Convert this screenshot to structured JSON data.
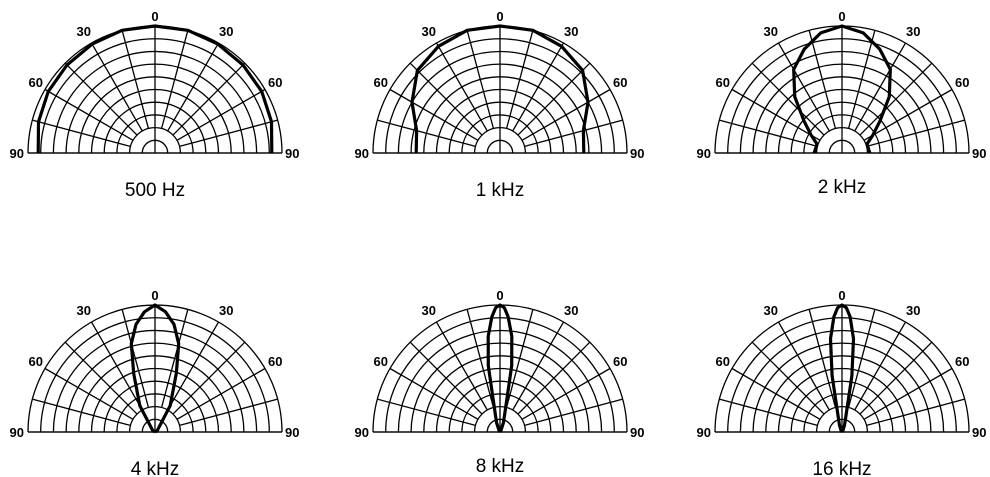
{
  "chart_data": [
    {
      "type": "polar",
      "title": "500 Hz",
      "angle_labels": [
        "0",
        "30",
        "30",
        "60",
        "60",
        "90",
        "90"
      ],
      "angles_deg": [
        -90,
        -75,
        -60,
        -45,
        -30,
        -15,
        0,
        15,
        30,
        45,
        60,
        75,
        90
      ],
      "values": [
        0.92,
        0.95,
        0.97,
        0.98,
        0.99,
        1.0,
        1.0,
        1.0,
        0.99,
        0.98,
        0.97,
        0.95,
        0.92
      ]
    },
    {
      "type": "polar",
      "title": "1 kHz",
      "angle_labels": [
        "0",
        "30",
        "30",
        "60",
        "60",
        "90",
        "90"
      ],
      "angles_deg": [
        -90,
        -75,
        -60,
        -45,
        -30,
        -15,
        0,
        15,
        30,
        45,
        60,
        75,
        90
      ],
      "values": [
        0.66,
        0.68,
        0.8,
        0.92,
        0.97,
        1.0,
        1.0,
        1.0,
        0.97,
        0.92,
        0.8,
        0.68,
        0.66
      ]
    },
    {
      "type": "polar",
      "title": "2 kHz",
      "angle_labels": [
        "0",
        "30",
        "30",
        "60",
        "60",
        "90",
        "90"
      ],
      "angles_deg": [
        -90,
        -80,
        -70,
        -60,
        -50,
        -40,
        -30,
        -20,
        -10,
        0,
        10,
        20,
        30,
        40,
        50,
        60,
        70,
        80,
        90
      ],
      "values": [
        0.22,
        0.21,
        0.21,
        0.28,
        0.39,
        0.58,
        0.76,
        0.87,
        0.96,
        1.0,
        0.96,
        0.87,
        0.76,
        0.58,
        0.39,
        0.28,
        0.21,
        0.21,
        0.22
      ]
    },
    {
      "type": "polar",
      "title": "4 kHz",
      "angle_labels": [
        "0",
        "30",
        "30",
        "60",
        "60",
        "90",
        "90"
      ],
      "angles_deg": [
        -90,
        -60,
        -30,
        -20,
        -15,
        -10,
        -5,
        0,
        5,
        10,
        15,
        20,
        30,
        60,
        90
      ],
      "values": [
        0.0,
        0.02,
        0.24,
        0.49,
        0.72,
        0.86,
        0.95,
        1.0,
        0.95,
        0.86,
        0.72,
        0.49,
        0.24,
        0.02,
        0.0
      ]
    },
    {
      "type": "polar",
      "title": "8 kHz",
      "angle_labels": [
        "0",
        "30",
        "30",
        "60",
        "60",
        "90",
        "90"
      ],
      "angles_deg": [
        -90,
        -40,
        -20,
        -10,
        -7,
        -4,
        -2,
        0,
        2,
        4,
        7,
        10,
        20,
        40,
        90
      ],
      "values": [
        0.0,
        0.01,
        0.08,
        0.53,
        0.76,
        0.91,
        0.98,
        1.0,
        0.98,
        0.91,
        0.76,
        0.53,
        0.08,
        0.01,
        0.0
      ]
    },
    {
      "type": "polar",
      "title": "16 kHz",
      "angle_labels": [
        "0",
        "30",
        "30",
        "60",
        "60",
        "90",
        "90"
      ],
      "angles_deg": [
        -90,
        -40,
        -20,
        -10,
        -7,
        -4,
        -2,
        0,
        2,
        4,
        7,
        10,
        20,
        40,
        90
      ],
      "values": [
        0.0,
        0.01,
        0.06,
        0.45,
        0.74,
        0.91,
        0.98,
        1.0,
        0.98,
        0.91,
        0.74,
        0.45,
        0.06,
        0.01,
        0.0
      ]
    }
  ]
}
